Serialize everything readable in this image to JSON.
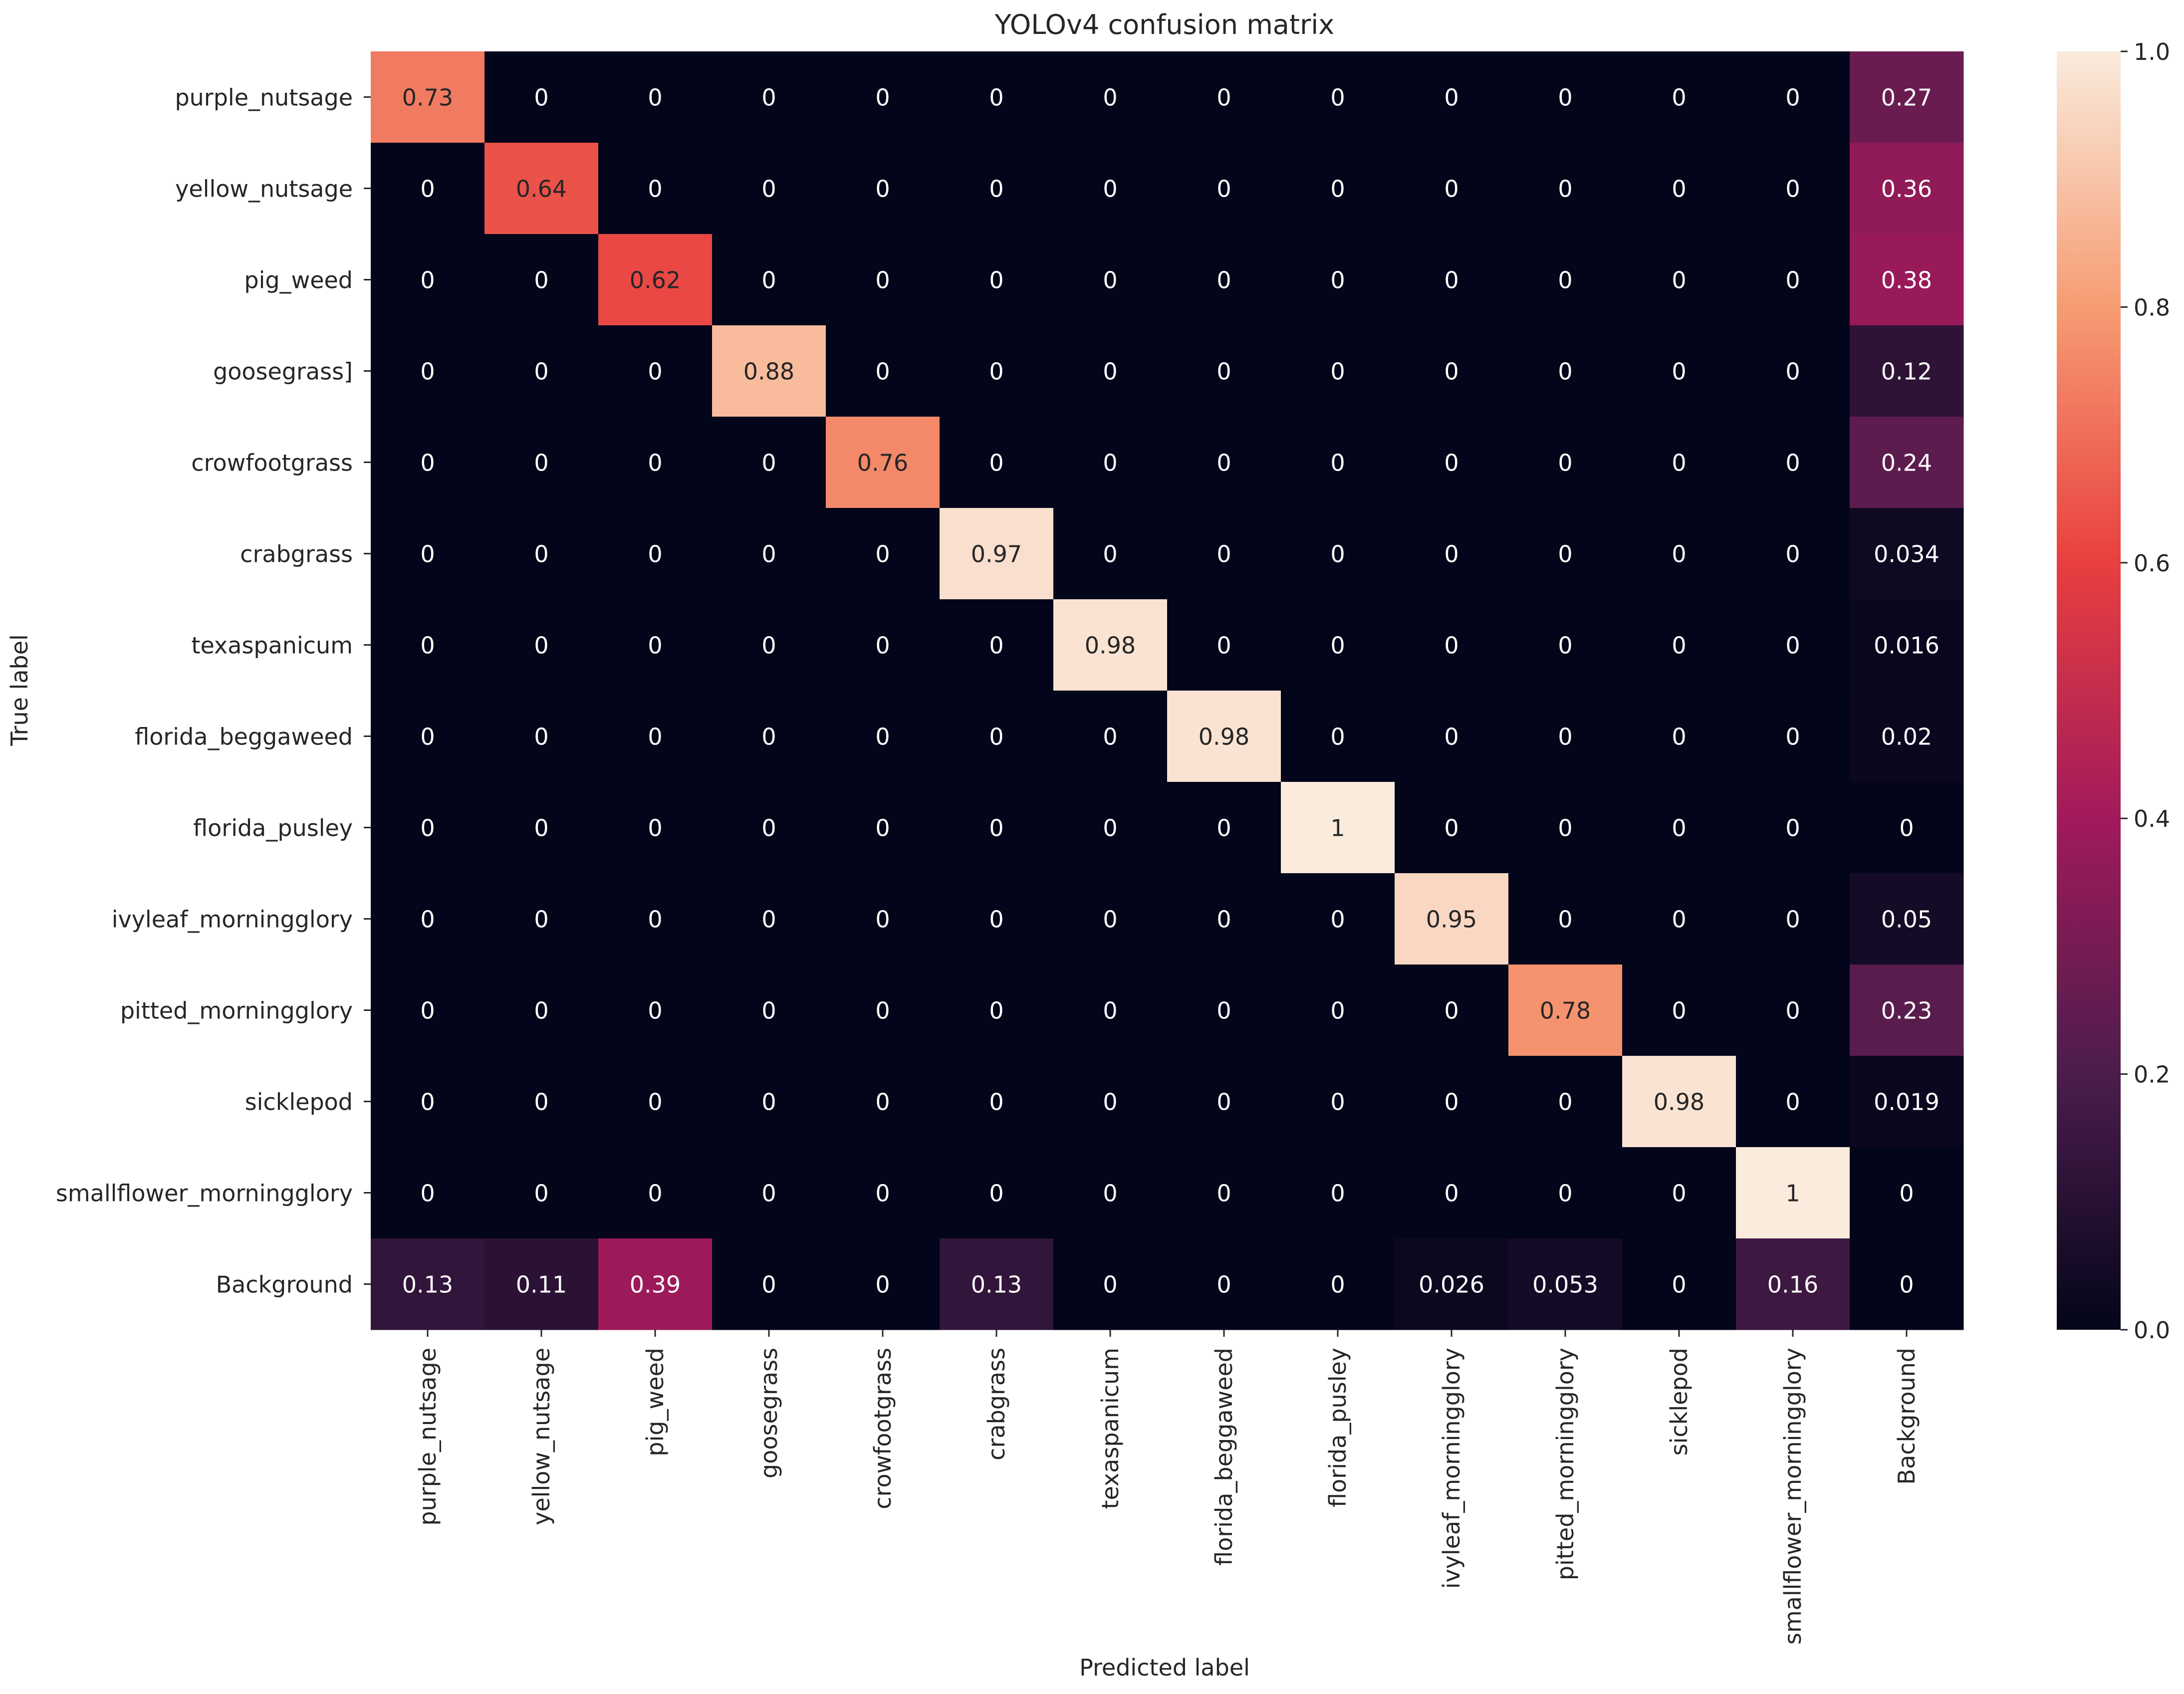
{
  "chart_data": {
    "type": "heatmap",
    "title": "YOLOv4 confusion matrix",
    "xlabel": "Predicted label",
    "ylabel": "True label",
    "row_labels": [
      "purple_nutsage",
      "yellow_nutsage",
      "pig_weed",
      "goosegrass]",
      "crowfootgrass",
      "crabgrass",
      "texaspanicum",
      "florida_beggaweed",
      "florida_pusley",
      "ivyleaf_morningglory",
      "pitted_morningglory",
      "sicklepod",
      "smallflower_morningglory",
      "Background"
    ],
    "col_labels": [
      "purple_nutsage",
      "yellow_nutsage",
      "pig_weed",
      "goosegrass",
      "crowfootgrass",
      "crabgrass",
      "texaspanicum",
      "florida_beggaweed",
      "florida_pusley",
      "ivyleaf_morningglory",
      "pitted_morningglory",
      "sicklepod",
      "smallflower_morningglory",
      "Background"
    ],
    "values": [
      [
        "0.73",
        "0",
        "0",
        "0",
        "0",
        "0",
        "0",
        "0",
        "0",
        "0",
        "0",
        "0",
        "0",
        "0.27"
      ],
      [
        "0",
        "0.64",
        "0",
        "0",
        "0",
        "0",
        "0",
        "0",
        "0",
        "0",
        "0",
        "0",
        "0",
        "0.36"
      ],
      [
        "0",
        "0",
        "0.62",
        "0",
        "0",
        "0",
        "0",
        "0",
        "0",
        "0",
        "0",
        "0",
        "0",
        "0.38"
      ],
      [
        "0",
        "0",
        "0",
        "0.88",
        "0",
        "0",
        "0",
        "0",
        "0",
        "0",
        "0",
        "0",
        "0",
        "0.12"
      ],
      [
        "0",
        "0",
        "0",
        "0",
        "0.76",
        "0",
        "0",
        "0",
        "0",
        "0",
        "0",
        "0",
        "0",
        "0.24"
      ],
      [
        "0",
        "0",
        "0",
        "0",
        "0",
        "0.97",
        "0",
        "0",
        "0",
        "0",
        "0",
        "0",
        "0",
        "0.034"
      ],
      [
        "0",
        "0",
        "0",
        "0",
        "0",
        "0",
        "0.98",
        "0",
        "0",
        "0",
        "0",
        "0",
        "0",
        "0.016"
      ],
      [
        "0",
        "0",
        "0",
        "0",
        "0",
        "0",
        "0",
        "0.98",
        "0",
        "0",
        "0",
        "0",
        "0",
        "0.02"
      ],
      [
        "0",
        "0",
        "0",
        "0",
        "0",
        "0",
        "0",
        "0",
        "1",
        "0",
        "0",
        "0",
        "0",
        "0"
      ],
      [
        "0",
        "0",
        "0",
        "0",
        "0",
        "0",
        "0",
        "0",
        "0",
        "0.95",
        "0",
        "0",
        "0",
        "0.05"
      ],
      [
        "0",
        "0",
        "0",
        "0",
        "0",
        "0",
        "0",
        "0",
        "0",
        "0",
        "0.78",
        "0",
        "0",
        "0.23"
      ],
      [
        "0",
        "0",
        "0",
        "0",
        "0",
        "0",
        "0",
        "0",
        "0",
        "0",
        "0",
        "0.98",
        "0",
        "0.019"
      ],
      [
        "0",
        "0",
        "0",
        "0",
        "0",
        "0",
        "0",
        "0",
        "0",
        "0",
        "0",
        "0",
        "1",
        "0"
      ],
      [
        "0.13",
        "0.11",
        "0.39",
        "0",
        "0",
        "0.13",
        "0",
        "0",
        "0",
        "0.026",
        "0.053",
        "0",
        "0.16",
        "0"
      ]
    ],
    "colorbar": {
      "range": [
        0,
        1
      ],
      "ticks": [
        "0.0",
        "0.2",
        "0.4",
        "0.6",
        "0.8",
        "1.0"
      ],
      "colormap": "rocket",
      "stops": [
        "#03051a",
        "#4c1d4b",
        "#a11a5b",
        "#e83f3f",
        "#f69c73",
        "#faebdd"
      ]
    },
    "grid": false,
    "legend": "colorbar-right"
  }
}
